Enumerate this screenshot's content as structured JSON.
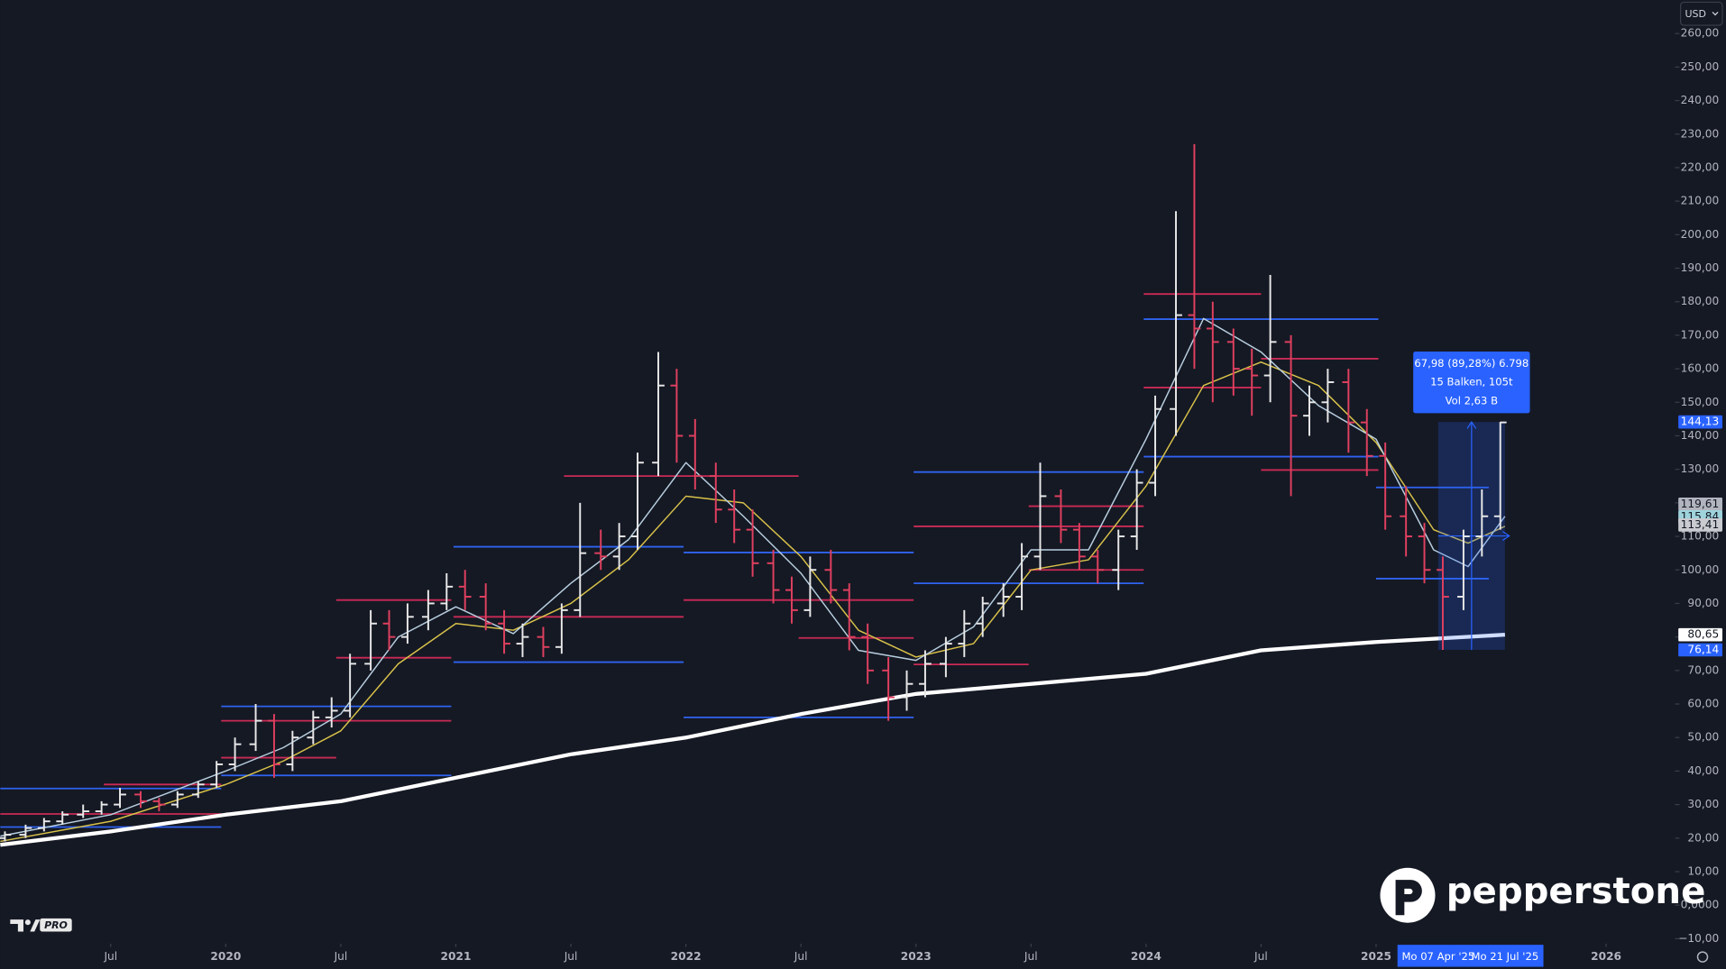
{
  "chart_data": {
    "type": "ohlc",
    "currency": "USD",
    "x": [
      2019.04,
      2019.13,
      2019.21,
      2019.29,
      2019.38,
      2019.46,
      2019.54,
      2019.63,
      2019.71,
      2019.79,
      2019.88,
      2019.96,
      2020.04,
      2020.13,
      2020.21,
      2020.29,
      2020.38,
      2020.46,
      2020.54,
      2020.63,
      2020.71,
      2020.79,
      2020.88,
      2020.96,
      2021.04,
      2021.13,
      2021.21,
      2021.29,
      2021.38,
      2021.46,
      2021.54,
      2021.63,
      2021.71,
      2021.79,
      2021.88,
      2021.96,
      2022.04,
      2022.13,
      2022.21,
      2022.29,
      2022.38,
      2022.46,
      2022.54,
      2022.63,
      2022.71,
      2022.79,
      2022.88,
      2022.96,
      2023.04,
      2023.13,
      2023.21,
      2023.29,
      2023.38,
      2023.46,
      2023.54,
      2023.63,
      2023.71,
      2023.79,
      2023.88,
      2023.96,
      2024.04,
      2024.13,
      2024.21,
      2024.29,
      2024.38,
      2024.46,
      2024.54,
      2024.63,
      2024.71,
      2024.79,
      2024.88,
      2024.96,
      2025.04,
      2025.13,
      2025.21,
      2025.29,
      2025.38,
      2025.46,
      2025.54
    ],
    "open": [
      20,
      21,
      23,
      25,
      27,
      28,
      30,
      33,
      31,
      30,
      33,
      36,
      42,
      48,
      55,
      42,
      50,
      56,
      58,
      72,
      84,
      80,
      86,
      90,
      95,
      92,
      84,
      78,
      80,
      77,
      88,
      105,
      104,
      110,
      132,
      155,
      140,
      128,
      118,
      112,
      102,
      94,
      88,
      100,
      94,
      80,
      70,
      62,
      66,
      72,
      78,
      84,
      90,
      92,
      104,
      122,
      112,
      104,
      100,
      110,
      126,
      148,
      176,
      172,
      168,
      160,
      158,
      168,
      146,
      150,
      156,
      144,
      134,
      116,
      110,
      100,
      92,
      110,
      116
    ],
    "high": [
      22,
      24,
      26,
      28,
      30,
      31,
      35,
      34,
      32,
      34,
      37,
      43,
      50,
      60,
      57,
      52,
      58,
      62,
      75,
      88,
      88,
      90,
      94,
      99,
      100,
      96,
      88,
      84,
      83,
      90,
      120,
      112,
      114,
      135,
      165,
      160,
      145,
      132,
      124,
      118,
      106,
      98,
      104,
      106,
      96,
      84,
      74,
      70,
      76,
      80,
      88,
      92,
      96,
      108,
      132,
      124,
      114,
      106,
      112,
      130,
      152,
      207,
      227,
      180,
      172,
      166,
      188,
      170,
      155,
      160,
      160,
      148,
      138,
      125,
      114,
      104,
      112,
      124,
      144.13
    ],
    "low": [
      19,
      20,
      22,
      24,
      26,
      27,
      29,
      29,
      28,
      29,
      32,
      35,
      40,
      46,
      38,
      40,
      48,
      53,
      56,
      70,
      76,
      78,
      82,
      88,
      88,
      82,
      75,
      74,
      74,
      75,
      86,
      100,
      100,
      106,
      128,
      132,
      124,
      114,
      108,
      98,
      90,
      84,
      86,
      90,
      76,
      66,
      55,
      58,
      62,
      68,
      74,
      80,
      86,
      88,
      100,
      108,
      100,
      96,
      94,
      106,
      122,
      140,
      160,
      150,
      152,
      146,
      150,
      122,
      140,
      144,
      135,
      128,
      112,
      104,
      96,
      76.14,
      88,
      104,
      112
    ],
    "close": [
      21,
      23,
      25,
      27,
      28,
      30,
      33,
      31,
      30,
      33,
      36,
      42,
      48,
      55,
      42,
      50,
      56,
      58,
      72,
      84,
      80,
      86,
      90,
      95,
      92,
      84,
      78,
      80,
      77,
      88,
      105,
      104,
      110,
      132,
      155,
      140,
      128,
      118,
      112,
      102,
      94,
      88,
      100,
      94,
      80,
      70,
      62,
      66,
      72,
      78,
      84,
      90,
      92,
      104,
      122,
      112,
      104,
      100,
      110,
      126,
      148,
      176,
      172,
      168,
      160,
      158,
      168,
      146,
      150,
      156,
      144,
      134,
      116,
      110,
      100,
      92,
      110,
      116,
      144
    ],
    "colors": {
      "up": "#e8e8e8",
      "down": "#e0405f"
    },
    "xlim": [
      2019.02,
      2026.29
    ],
    "ylim": [
      -11.5,
      270
    ],
    "xticks": [
      {
        "value": 2019.5,
        "label": "Jul"
      },
      2020,
      {
        "value": 2020.5,
        "label": "Jul"
      },
      2021,
      {
        "value": 2021.5,
        "label": "Jul"
      },
      2022,
      {
        "value": 2022.5,
        "label": "Jul"
      },
      2023,
      {
        "value": 2023.5,
        "label": "Jul"
      },
      2024,
      {
        "value": 2024.5,
        "label": "Jul"
      },
      2025,
      2026
    ],
    "yticks": [
      {
        "value": 260,
        "label": "260,00"
      },
      {
        "value": 250,
        "label": "250,00"
      },
      {
        "value": 240,
        "label": "240,00"
      },
      {
        "value": 230,
        "label": "230,00"
      },
      {
        "value": 220,
        "label": "220,00"
      },
      {
        "value": 210,
        "label": "210,00"
      },
      {
        "value": 200,
        "label": "200,00"
      },
      {
        "value": 190,
        "label": "190,00"
      },
      {
        "value": 180,
        "label": "180,00"
      },
      {
        "value": 170,
        "label": "170,00"
      },
      {
        "value": 160,
        "label": "160,00"
      },
      {
        "value": 150,
        "label": "150,00"
      },
      {
        "value": 140,
        "label": "140,00"
      },
      {
        "value": 130,
        "label": "130,00"
      },
      {
        "value": 120,
        "label": "120,00"
      },
      {
        "value": 110,
        "label": "110,00"
      },
      {
        "value": 100,
        "label": "100,00"
      },
      {
        "value": 90,
        "label": "90,00"
      },
      {
        "value": 80,
        "label": "80,00"
      },
      {
        "value": 70,
        "label": "70,00"
      },
      {
        "value": 60,
        "label": "60,00"
      },
      {
        "value": 50,
        "label": "50,00"
      },
      {
        "value": 40,
        "label": "40,00"
      },
      {
        "value": 30,
        "label": "30,00"
      },
      {
        "value": 20,
        "label": "20,00"
      },
      {
        "value": 10,
        "label": "10,00"
      },
      {
        "value": 0,
        "label": "0,0000"
      },
      {
        "value": -10,
        "label": "−10,00"
      }
    ],
    "lines": [
      {
        "color": "#ffffff",
        "width": 3.5,
        "x": [
          2019.02,
          2019.5,
          2020,
          2020.5,
          2021,
          2021.5,
          2022,
          2022.5,
          2023,
          2023.5,
          2024,
          2024.5,
          2025,
          2025.56
        ],
        "values": [
          18,
          22,
          27,
          31,
          38,
          45,
          50,
          57,
          63,
          66,
          69,
          76,
          78.5,
          80.65
        ]
      },
      {
        "color": "#d9c24a",
        "width": 1.2,
        "x": [
          2019.02,
          2019.5,
          2020,
          2020.25,
          2020.5,
          2020.75,
          2021,
          2021.25,
          2021.5,
          2021.75,
          2022,
          2022.25,
          2022.5,
          2022.75,
          2023,
          2023.25,
          2023.5,
          2023.75,
          2024,
          2024.25,
          2024.5,
          2024.75,
          2025,
          2025.25,
          2025.4,
          2025.56
        ],
        "values": [
          19,
          25,
          36,
          43,
          52,
          72,
          84,
          82,
          90,
          103,
          122,
          120,
          104,
          82,
          74,
          78,
          100,
          103,
          125,
          155,
          162,
          155,
          138,
          112,
          108,
          113
        ]
      },
      {
        "color": "#b8cfe0",
        "width": 1.2,
        "x": [
          2019.02,
          2019.5,
          2020,
          2020.25,
          2020.5,
          2020.75,
          2021,
          2021.25,
          2021.5,
          2021.75,
          2022,
          2022.25,
          2022.5,
          2022.75,
          2023,
          2023.25,
          2023.5,
          2023.75,
          2024,
          2024.25,
          2024.5,
          2024.75,
          2025,
          2025.25,
          2025.4,
          2025.56
        ],
        "values": [
          20.6,
          27,
          40,
          47,
          57,
          80,
          89,
          81,
          96,
          109,
          132,
          116,
          99,
          76,
          73,
          83,
          106,
          106,
          139,
          175,
          165,
          149,
          139,
          106,
          101,
          116
        ]
      }
    ],
    "levels": [
      {
        "color": "#2f63f0",
        "value": 34.8,
        "x": [
          2019.02,
          2019.98
        ]
      },
      {
        "color": "#2f63f0",
        "value": 23.3,
        "x": [
          2019.02,
          2019.98
        ]
      },
      {
        "color": "#2f63f0",
        "value": 59.3,
        "x": [
          2019.98,
          2020.98
        ]
      },
      {
        "color": "#2f63f0",
        "value": 38.7,
        "x": [
          2019.98,
          2020.98
        ]
      },
      {
        "color": "#2f63f0",
        "value": 106.9,
        "x": [
          2020.99,
          2021.99
        ]
      },
      {
        "color": "#2f63f0",
        "value": 72.5,
        "x": [
          2020.99,
          2021.99
        ]
      },
      {
        "color": "#2f63f0",
        "value": 105.2,
        "x": [
          2021.99,
          2022.99
        ]
      },
      {
        "color": "#2f63f0",
        "value": 56,
        "x": [
          2021.99,
          2022.99
        ]
      },
      {
        "color": "#2f63f0",
        "value": 129.2,
        "x": [
          2022.99,
          2023.99
        ]
      },
      {
        "color": "#2f63f0",
        "value": 96,
        "x": [
          2022.99,
          2023.99
        ]
      },
      {
        "color": "#2f63f0",
        "value": 174.8,
        "x": [
          2023.99,
          2025.01
        ]
      },
      {
        "color": "#2f63f0",
        "value": 133.8,
        "x": [
          2023.99,
          2025.01
        ]
      },
      {
        "color": "#2f63f0",
        "value": 124.6,
        "x": [
          2025.0,
          2025.49
        ]
      },
      {
        "color": "#2f63f0",
        "value": 97.4,
        "x": [
          2025.0,
          2025.49
        ]
      },
      {
        "color": "#c92a55",
        "value": 36,
        "x": [
          2019.47,
          2019.98
        ]
      },
      {
        "color": "#c92a55",
        "value": 27.2,
        "x": [
          2019.02,
          2019.98
        ]
      },
      {
        "color": "#c92a55",
        "value": 55,
        "x": [
          2019.98,
          2020.98
        ]
      },
      {
        "color": "#c92a55",
        "value": 44,
        "x": [
          2019.98,
          2020.48
        ]
      },
      {
        "color": "#c92a55",
        "value": 91,
        "x": [
          2020.48,
          2020.98
        ]
      },
      {
        "color": "#c92a55",
        "value": 73.8,
        "x": [
          2020.48,
          2020.98
        ]
      },
      {
        "color": "#c92a55",
        "value": 128,
        "x": [
          2021.47,
          2022.49
        ]
      },
      {
        "color": "#c92a55",
        "value": 86,
        "x": [
          2020.99,
          2021.99
        ]
      },
      {
        "color": "#c92a55",
        "value": 91,
        "x": [
          2021.99,
          2022.99
        ]
      },
      {
        "color": "#c92a55",
        "value": 79.7,
        "x": [
          2022.49,
          2022.99
        ]
      },
      {
        "color": "#c92a55",
        "value": 113,
        "x": [
          2022.99,
          2023.99
        ]
      },
      {
        "color": "#c92a55",
        "value": 71.8,
        "x": [
          2022.99,
          2023.49
        ]
      },
      {
        "color": "#c92a55",
        "value": 119,
        "x": [
          2023.49,
          2023.99
        ]
      },
      {
        "color": "#c92a55",
        "value": 100,
        "x": [
          2023.49,
          2023.99
        ]
      },
      {
        "color": "#c92a55",
        "value": 182.3,
        "x": [
          2023.99,
          2024.5
        ]
      },
      {
        "color": "#c92a55",
        "value": 154.4,
        "x": [
          2023.99,
          2024.5
        ]
      },
      {
        "color": "#c92a55",
        "value": 163,
        "x": [
          2024.5,
          2025.01
        ]
      },
      {
        "color": "#c92a55",
        "value": 129.8,
        "x": [
          2024.5,
          2025.01
        ]
      }
    ],
    "measure": {
      "x": [
        2025.27,
        2025.56
      ],
      "range": [
        76.14,
        144.13
      ],
      "label": [
        "67,98 (89,28%) 6.798",
        "15 Balken, 105t",
        "Vol 2,63 B"
      ],
      "dates": [
        "Mo 07 Apr '25",
        "Mo 21 Jul '25"
      ],
      "color": "#2962ff"
    },
    "price_labels": [
      {
        "value": 144.13,
        "label": "144,13",
        "background": "#2962ff",
        "text_color": "#ffffff"
      },
      {
        "value": 119.61,
        "label": "119,61",
        "background": "#b2b5be",
        "text_color": "#131722"
      },
      {
        "value": 115.84,
        "label": "115,84",
        "background": "#9fd3dc",
        "text_color": "#131722"
      },
      {
        "value": 113.41,
        "label": "113,41",
        "background": "#c9cbd1",
        "text_color": "#131722"
      },
      {
        "value": 80.65,
        "label": "80,65",
        "background": "#ffffff",
        "text_color": "#131722"
      },
      {
        "value": 76.14,
        "label": "76,14",
        "background": "#2962ff",
        "text_color": "#ffffff"
      }
    ]
  },
  "branding": {
    "logo": "pepperstone",
    "badge": "PRO"
  }
}
